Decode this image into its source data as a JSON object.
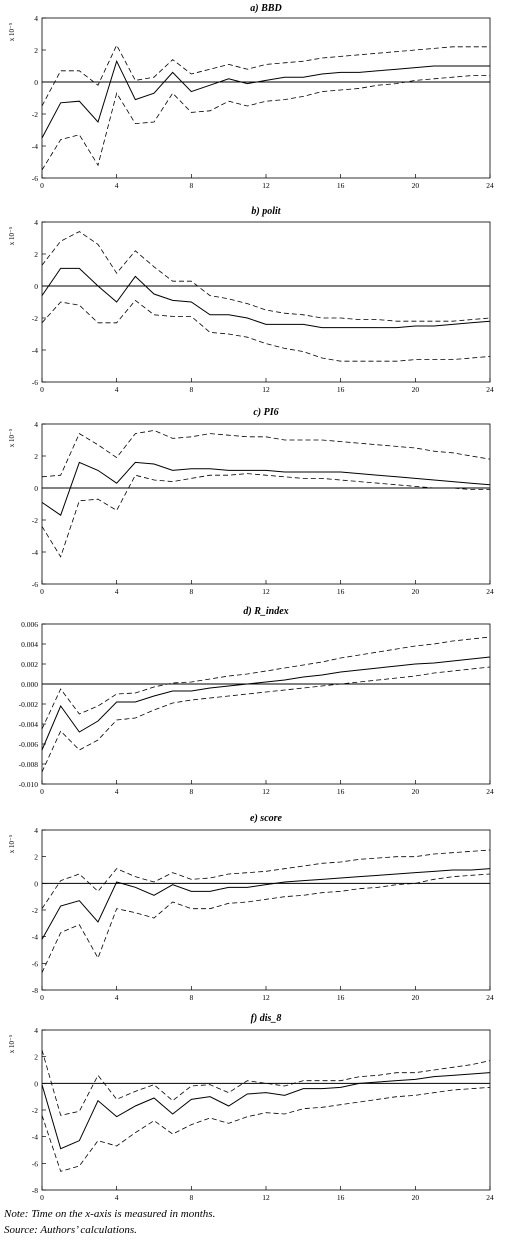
{
  "chart_data": [
    {
      "type": "line",
      "title": "a) BBD",
      "ylabel": "x 10⁻⁵",
      "xlim": [
        0,
        24
      ],
      "ylim": [
        -6,
        4
      ],
      "x_ticks": [
        0,
        4,
        8,
        12,
        16,
        20,
        24
      ],
      "y_ticks": [
        -6,
        -4,
        -2,
        0,
        2,
        4
      ],
      "y_tick_labels": [
        "-6",
        "-4",
        "-2",
        "0",
        "2",
        "4"
      ],
      "x": [
        0,
        1,
        2,
        3,
        4,
        5,
        6,
        7,
        8,
        9,
        10,
        11,
        12,
        13,
        14,
        15,
        16,
        17,
        18,
        19,
        20,
        21,
        22,
        23,
        24
      ],
      "series": [
        {
          "role": "estimate",
          "style": "solid",
          "values": [
            -3.5,
            -1.3,
            -1.2,
            -2.5,
            1.3,
            -1.1,
            -0.7,
            0.6,
            -0.6,
            -0.2,
            0.2,
            -0.1,
            0.1,
            0.3,
            0.3,
            0.5,
            0.6,
            0.6,
            0.7,
            0.8,
            0.9,
            1.0,
            1.0,
            1.0,
            1.0
          ]
        },
        {
          "role": "upper",
          "style": "dashed",
          "values": [
            -1.5,
            0.7,
            0.7,
            -0.2,
            2.3,
            0.1,
            0.3,
            1.4,
            0.5,
            0.8,
            1.1,
            0.8,
            1.1,
            1.2,
            1.3,
            1.5,
            1.6,
            1.7,
            1.8,
            1.9,
            2.0,
            2.1,
            2.2,
            2.2,
            2.2
          ]
        },
        {
          "role": "lower",
          "style": "dashed",
          "values": [
            -5.5,
            -3.6,
            -3.3,
            -5.2,
            -0.7,
            -2.6,
            -2.5,
            -0.7,
            -1.9,
            -1.8,
            -1.2,
            -1.5,
            -1.2,
            -1.1,
            -0.9,
            -0.6,
            -0.5,
            -0.4,
            -0.2,
            -0.1,
            0.1,
            0.2,
            0.3,
            0.4,
            0.4
          ]
        }
      ]
    },
    {
      "type": "line",
      "title": "b) polit",
      "ylabel": "x 10⁻⁵",
      "xlim": [
        0,
        24
      ],
      "ylim": [
        -6,
        4
      ],
      "x_ticks": [
        0,
        4,
        8,
        12,
        16,
        20,
        24
      ],
      "y_ticks": [
        -6,
        -4,
        -2,
        0,
        2,
        4
      ],
      "y_tick_labels": [
        "-6",
        "-4",
        "-2",
        "0",
        "2",
        "4"
      ],
      "x": [
        0,
        1,
        2,
        3,
        4,
        5,
        6,
        7,
        8,
        9,
        10,
        11,
        12,
        13,
        14,
        15,
        16,
        17,
        18,
        19,
        20,
        21,
        22,
        23,
        24
      ],
      "series": [
        {
          "role": "estimate",
          "style": "solid",
          "values": [
            -0.6,
            1.1,
            1.1,
            0.0,
            -1.0,
            0.6,
            -0.5,
            -0.9,
            -1.0,
            -1.8,
            -1.8,
            -2.0,
            -2.4,
            -2.4,
            -2.4,
            -2.6,
            -2.6,
            -2.6,
            -2.6,
            -2.6,
            -2.5,
            -2.5,
            -2.4,
            -2.3,
            -2.2
          ]
        },
        {
          "role": "upper",
          "style": "dashed",
          "values": [
            1.3,
            2.8,
            3.4,
            2.6,
            0.8,
            2.2,
            1.2,
            0.3,
            0.3,
            -0.6,
            -0.8,
            -1.1,
            -1.5,
            -1.7,
            -1.8,
            -2.0,
            -2.0,
            -2.1,
            -2.1,
            -2.2,
            -2.2,
            -2.2,
            -2.2,
            -2.1,
            -2.0
          ]
        },
        {
          "role": "lower",
          "style": "dashed",
          "values": [
            -2.3,
            -1.0,
            -1.2,
            -2.3,
            -2.3,
            -0.9,
            -1.8,
            -1.9,
            -1.9,
            -2.9,
            -3.0,
            -3.2,
            -3.6,
            -3.9,
            -4.1,
            -4.5,
            -4.7,
            -4.7,
            -4.7,
            -4.7,
            -4.6,
            -4.6,
            -4.6,
            -4.5,
            -4.4
          ]
        }
      ]
    },
    {
      "type": "line",
      "title": "c) PI6",
      "ylabel": "x 10⁻⁵",
      "xlim": [
        0,
        24
      ],
      "ylim": [
        -6,
        4
      ],
      "x_ticks": [
        0,
        4,
        8,
        12,
        16,
        20,
        24
      ],
      "y_ticks": [
        -6,
        -4,
        -2,
        0,
        2,
        4
      ],
      "y_tick_labels": [
        "-6",
        "-4",
        "-2",
        "0",
        "2",
        "4"
      ],
      "x": [
        0,
        1,
        2,
        3,
        4,
        5,
        6,
        7,
        8,
        9,
        10,
        11,
        12,
        13,
        14,
        15,
        16,
        17,
        18,
        19,
        20,
        21,
        22,
        23,
        24
      ],
      "series": [
        {
          "role": "estimate",
          "style": "solid",
          "values": [
            -0.9,
            -1.7,
            1.6,
            1.1,
            0.3,
            1.6,
            1.5,
            1.1,
            1.2,
            1.2,
            1.1,
            1.1,
            1.1,
            1.0,
            1.0,
            1.0,
            1.0,
            0.9,
            0.8,
            0.7,
            0.6,
            0.5,
            0.4,
            0.3,
            0.2
          ]
        },
        {
          "role": "upper",
          "style": "dashed",
          "values": [
            0.7,
            0.8,
            3.4,
            2.7,
            1.9,
            3.4,
            3.6,
            3.1,
            3.2,
            3.4,
            3.3,
            3.2,
            3.2,
            3.0,
            3.0,
            3.0,
            2.9,
            2.8,
            2.7,
            2.6,
            2.5,
            2.3,
            2.2,
            2.0,
            1.8
          ]
        },
        {
          "role": "lower",
          "style": "dashed",
          "values": [
            -2.4,
            -4.3,
            -0.8,
            -0.7,
            -1.4,
            0.8,
            0.5,
            0.4,
            0.6,
            0.8,
            0.8,
            0.9,
            0.8,
            0.7,
            0.6,
            0.6,
            0.5,
            0.4,
            0.3,
            0.2,
            0.1,
            0.0,
            0.0,
            -0.1,
            -0.1
          ]
        }
      ]
    },
    {
      "type": "line",
      "title": "d) R_index",
      "ylabel": "",
      "xlim": [
        0,
        24
      ],
      "ylim": [
        -0.01,
        0.006
      ],
      "x_ticks": [
        0,
        4,
        8,
        12,
        16,
        20,
        24
      ],
      "y_ticks": [
        -0.01,
        -0.008,
        -0.006,
        -0.004,
        -0.002,
        0,
        0.002,
        0.004,
        0.006
      ],
      "y_tick_labels": [
        "-0.010",
        "-0.008",
        "-0.006",
        "-0.004",
        "-0.002",
        "0.000",
        "0.002",
        "0.004",
        "0.006"
      ],
      "x": [
        0,
        1,
        2,
        3,
        4,
        5,
        6,
        7,
        8,
        9,
        10,
        11,
        12,
        13,
        14,
        15,
        16,
        17,
        18,
        19,
        20,
        21,
        22,
        23,
        24
      ],
      "series": [
        {
          "role": "estimate",
          "style": "solid",
          "values": [
            -0.0066,
            -0.0022,
            -0.0048,
            -0.0037,
            -0.0018,
            -0.0018,
            -0.0012,
            -0.0007,
            -0.0007,
            -0.0004,
            -0.0002,
            0.0,
            0.0002,
            0.0004,
            0.0007,
            0.0009,
            0.0012,
            0.0014,
            0.0016,
            0.0018,
            0.002,
            0.0021,
            0.0023,
            0.0025,
            0.0027
          ]
        },
        {
          "role": "upper",
          "style": "dashed",
          "values": [
            -0.0045,
            -0.0005,
            -0.003,
            -0.0022,
            -0.001,
            -0.0009,
            -0.0003,
            0.0001,
            0.0002,
            0.0005,
            0.0008,
            0.001,
            0.0013,
            0.0016,
            0.0019,
            0.0022,
            0.0026,
            0.0029,
            0.0032,
            0.0035,
            0.0038,
            0.004,
            0.0043,
            0.0045,
            0.0047
          ]
        },
        {
          "role": "lower",
          "style": "dashed",
          "values": [
            -0.0088,
            -0.0047,
            -0.0066,
            -0.0056,
            -0.0036,
            -0.0034,
            -0.0026,
            -0.0019,
            -0.0016,
            -0.0014,
            -0.0012,
            -0.001,
            -0.0008,
            -0.0006,
            -0.0004,
            -0.0002,
            0.0,
            0.0002,
            0.0004,
            0.0006,
            0.0008,
            0.0011,
            0.0013,
            0.0015,
            0.0017
          ]
        }
      ]
    },
    {
      "type": "line",
      "title": "e) score",
      "ylabel": "x 10⁻⁵",
      "xlim": [
        0,
        24
      ],
      "ylim": [
        -8,
        4
      ],
      "x_ticks": [
        0,
        4,
        8,
        12,
        16,
        20,
        24
      ],
      "y_ticks": [
        -8,
        -6,
        -4,
        -2,
        0,
        2,
        4
      ],
      "y_tick_labels": [
        "-8",
        "-6",
        "-4",
        "-2",
        "0",
        "2",
        "4"
      ],
      "x": [
        0,
        1,
        2,
        3,
        4,
        5,
        6,
        7,
        8,
        9,
        10,
        11,
        12,
        13,
        14,
        15,
        16,
        17,
        18,
        19,
        20,
        21,
        22,
        23,
        24
      ],
      "series": [
        {
          "role": "estimate",
          "style": "solid",
          "values": [
            -4.2,
            -1.7,
            -1.3,
            -2.9,
            0.1,
            -0.3,
            -0.9,
            -0.1,
            -0.6,
            -0.6,
            -0.3,
            -0.3,
            -0.1,
            0.1,
            0.2,
            0.3,
            0.4,
            0.5,
            0.6,
            0.7,
            0.8,
            0.9,
            1.0,
            1.0,
            1.1
          ]
        },
        {
          "role": "upper",
          "style": "dashed",
          "values": [
            -1.9,
            0.2,
            0.7,
            -0.6,
            1.1,
            0.5,
            0.1,
            0.8,
            0.3,
            0.4,
            0.7,
            0.8,
            0.9,
            1.1,
            1.3,
            1.5,
            1.6,
            1.8,
            1.9,
            2.0,
            2.0,
            2.2,
            2.3,
            2.4,
            2.5
          ]
        },
        {
          "role": "lower",
          "style": "dashed",
          "values": [
            -6.7,
            -3.7,
            -3.1,
            -5.6,
            -1.9,
            -2.2,
            -2.6,
            -1.4,
            -1.9,
            -1.9,
            -1.5,
            -1.4,
            -1.2,
            -1.0,
            -0.9,
            -0.7,
            -0.6,
            -0.4,
            -0.3,
            -0.1,
            0.0,
            0.3,
            0.5,
            0.6,
            0.7
          ]
        }
      ]
    },
    {
      "type": "line",
      "title": "f) dis_8",
      "ylabel": "x 10⁻⁵",
      "xlim": [
        0,
        24
      ],
      "ylim": [
        -8,
        4
      ],
      "x_ticks": [
        0,
        4,
        8,
        12,
        16,
        20,
        24
      ],
      "y_ticks": [
        -8,
        -6,
        -4,
        -2,
        0,
        2,
        4
      ],
      "y_tick_labels": [
        "-8",
        "-6",
        "-4",
        "-2",
        "0",
        "2",
        "4"
      ],
      "x": [
        0,
        1,
        2,
        3,
        4,
        5,
        6,
        7,
        8,
        9,
        10,
        11,
        12,
        13,
        14,
        15,
        16,
        17,
        18,
        19,
        20,
        21,
        22,
        23,
        24
      ],
      "series": [
        {
          "role": "estimate",
          "style": "solid",
          "values": [
            -0.1,
            -4.9,
            -4.3,
            -1.3,
            -2.5,
            -1.7,
            -1.1,
            -2.3,
            -1.2,
            -1.0,
            -1.7,
            -0.8,
            -0.7,
            -0.9,
            -0.4,
            -0.4,
            -0.3,
            0.0,
            0.1,
            0.2,
            0.3,
            0.5,
            0.6,
            0.7,
            0.8
          ]
        },
        {
          "role": "upper",
          "style": "dashed",
          "values": [
            2.5,
            -2.4,
            -2.1,
            0.6,
            -1.2,
            -0.6,
            -0.1,
            -1.3,
            -0.2,
            -0.1,
            -0.7,
            0.2,
            0.0,
            -0.2,
            0.2,
            0.2,
            0.2,
            0.5,
            0.6,
            0.8,
            0.8,
            1.0,
            1.2,
            1.4,
            1.7
          ]
        },
        {
          "role": "lower",
          "style": "dashed",
          "values": [
            -2.4,
            -6.6,
            -6.2,
            -4.3,
            -4.7,
            -3.7,
            -2.8,
            -3.8,
            -3.1,
            -2.6,
            -3.0,
            -2.5,
            -2.2,
            -2.3,
            -1.9,
            -1.8,
            -1.6,
            -1.4,
            -1.2,
            -1.0,
            -0.9,
            -0.7,
            -0.5,
            -0.4,
            -0.3
          ]
        }
      ]
    }
  ],
  "notes": {
    "note": "Note: Time on the x-axis is measured in months.",
    "source": "Source: Authors’ calculations."
  }
}
